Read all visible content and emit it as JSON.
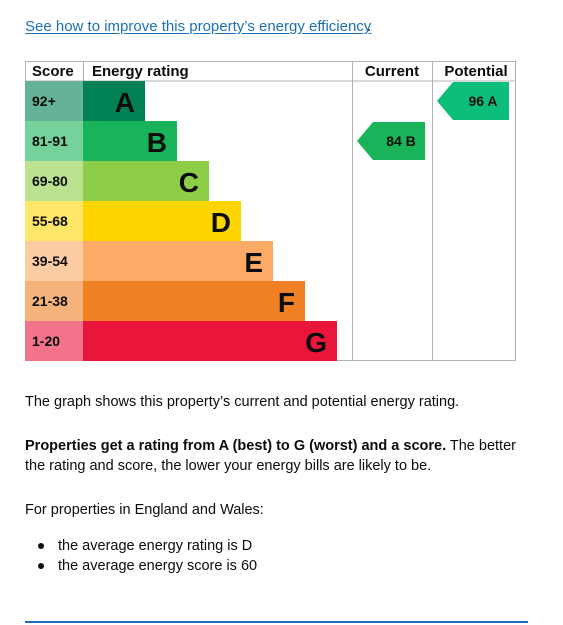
{
  "link": {
    "text": "See how to improve this property’s energy efficiency",
    "tail": "."
  },
  "chart_data": {
    "type": "table",
    "headers": {
      "score": "Score",
      "rating": "Energy rating",
      "current": "Current",
      "potential": "Potential"
    },
    "bands": [
      {
        "range": "92+",
        "letter": "A",
        "color": "#008054",
        "range_bg": "#66b298"
      },
      {
        "range": "81-91",
        "letter": "B",
        "color": "#19b459",
        "range_bg": "#75d29b"
      },
      {
        "range": "69-80",
        "letter": "C",
        "color": "#8dce46",
        "range_bg": "#bbe290"
      },
      {
        "range": "55-68",
        "letter": "D",
        "color": "#ffd500",
        "range_bg": "#ffe666"
      },
      {
        "range": "39-54",
        "letter": "E",
        "color": "#fcaa65",
        "range_bg": "#fdcca3"
      },
      {
        "range": "21-38",
        "letter": "F",
        "color": "#ef8023",
        "range_bg": "#f5b37b"
      },
      {
        "range": "1-20",
        "letter": "G",
        "color": "#e9153b",
        "range_bg": "#f2738a"
      }
    ],
    "current": {
      "score": 84,
      "letter": "B",
      "label": "84 B",
      "color": "#19b459"
    },
    "potential": {
      "score": 96,
      "letter": "A",
      "label": "96 A",
      "color": "#0bbe7a"
    }
  },
  "text": {
    "p1": "The graph shows this property’s current and potential energy rating.",
    "p2_bold": "Properties get a rating from A (best) to G (worst) and a score.",
    "p2_rest": " The better the rating and score, the lower your energy bills are likely to be.",
    "p3": "For properties in England and Wales:",
    "bullets": [
      "the average energy rating is D",
      "the average energy score is 60"
    ]
  }
}
